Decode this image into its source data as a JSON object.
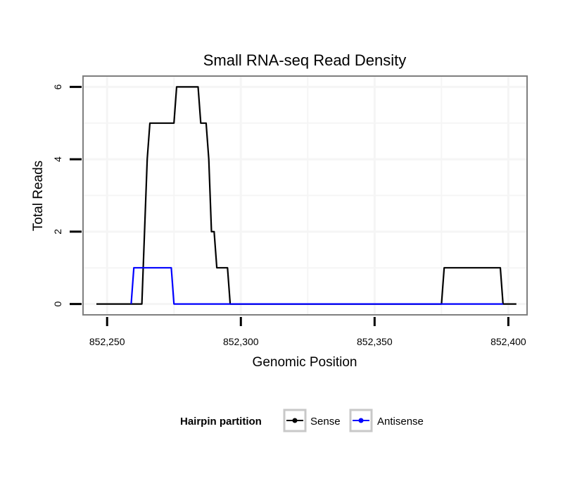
{
  "chart_data": {
    "type": "line",
    "title": "Small RNA-seq Read Density",
    "xlabel": "Genomic Position",
    "ylabel": "Total Reads",
    "xlim": [
      852241,
      852407
    ],
    "ylim": [
      -0.3,
      6.3
    ],
    "x_ticks": [
      852250,
      852300,
      852350,
      852400
    ],
    "x_tick_labels": [
      "852,250",
      "852,300",
      "852,350",
      "852,400"
    ],
    "y_ticks": [
      0,
      2,
      4,
      6
    ],
    "y_tick_labels": [
      "0",
      "2",
      "4",
      "6"
    ],
    "grid": true,
    "legend": {
      "title": "Hairpin partition",
      "position": "bottom"
    },
    "colors": {
      "Sense": "#000000",
      "Antisense": "#0000ff",
      "panel_border": "#7f7f7f",
      "grid": "#f5f5f5"
    },
    "series": [
      {
        "name": "Sense",
        "x": [
          852246,
          852263,
          852264,
          852265,
          852266,
          852275,
          852276,
          852277,
          852284,
          852285,
          852287,
          852288,
          852289,
          852290,
          852291,
          852292,
          852295,
          852296,
          852375,
          852376,
          852397,
          852398,
          852403
        ],
        "y": [
          0,
          0,
          2,
          4,
          5,
          5,
          6,
          6,
          6,
          5,
          5,
          4,
          2,
          2,
          1,
          1,
          1,
          0,
          0,
          1,
          1,
          0,
          0
        ]
      },
      {
        "name": "Antisense",
        "x": [
          852259,
          852260,
          852274,
          852275,
          852398
        ],
        "y": [
          0,
          1,
          1,
          0,
          0
        ]
      }
    ]
  }
}
